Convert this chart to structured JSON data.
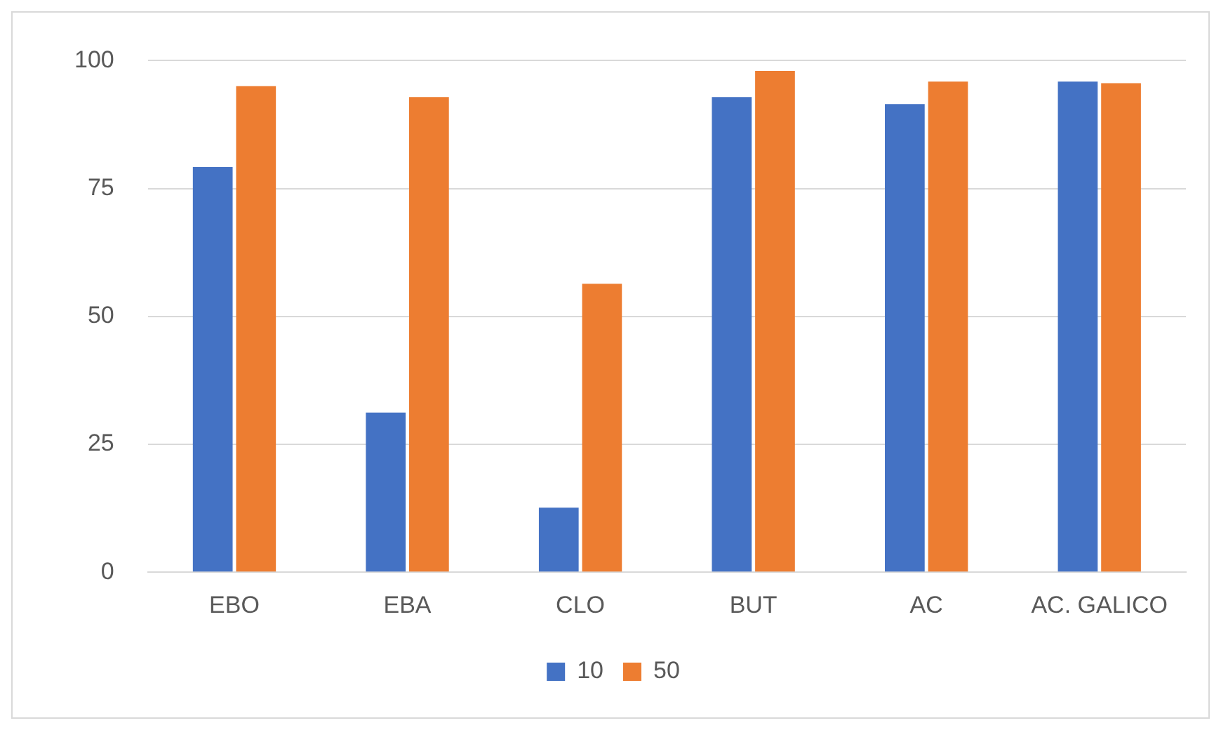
{
  "chart_data": {
    "type": "bar",
    "categories": [
      "EBO",
      "EBA",
      "CLO",
      "BUT",
      "AC",
      "AC. GALICO"
    ],
    "series": [
      {
        "name": "10",
        "color": "#4472c4",
        "values": [
          79.2,
          31.2,
          12.6,
          92.9,
          91.5,
          95.9
        ]
      },
      {
        "name": "50",
        "color": "#ed7d31",
        "values": [
          95,
          92.9,
          56.4,
          98,
          95.9,
          95.6
        ]
      }
    ],
    "ylim": [
      0,
      100
    ],
    "yticks": [
      0,
      25,
      50,
      75,
      100
    ],
    "grid": "y",
    "legend": "bottom"
  }
}
